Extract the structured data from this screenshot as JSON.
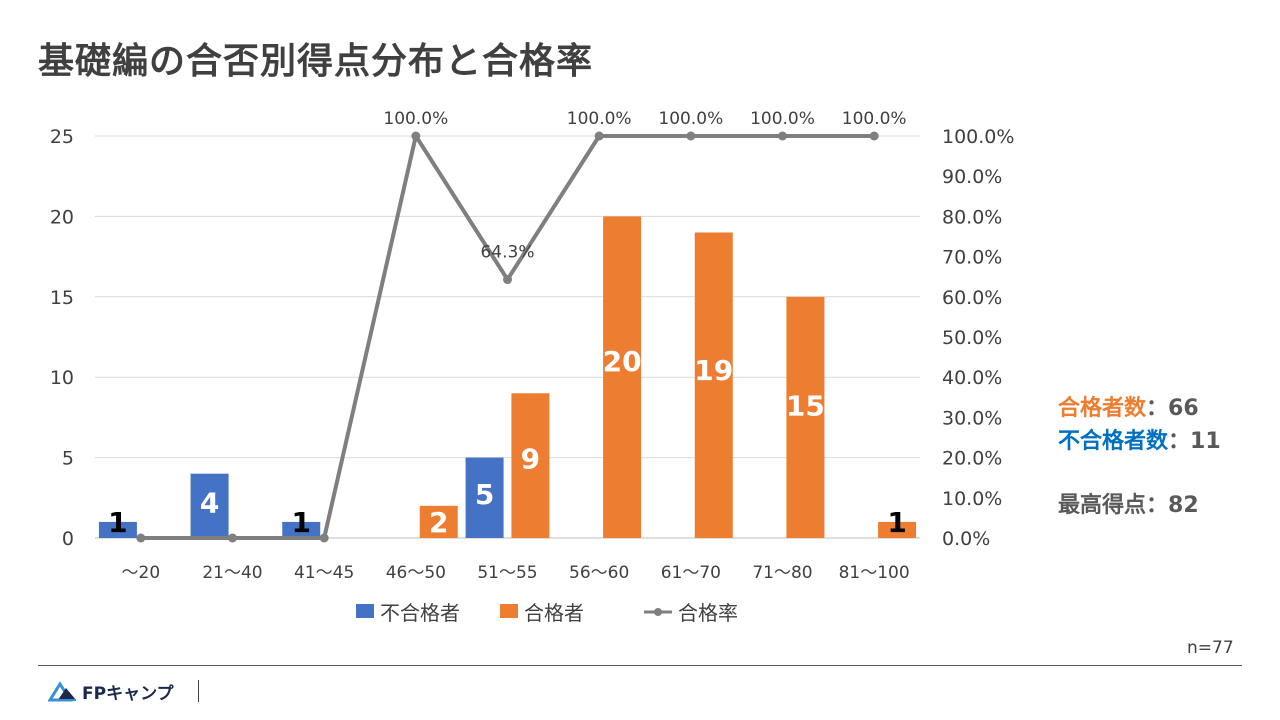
{
  "title": "基礎編の合否別得点分布と合格率",
  "chart_data": {
    "type": "bar",
    "categories": [
      "〜20",
      "21〜40",
      "41〜45",
      "46〜50",
      "51〜55",
      "56〜60",
      "61〜70",
      "71〜80",
      "81〜100"
    ],
    "series": [
      {
        "name": "不合格者",
        "type": "bar",
        "axis": "left",
        "color": "#4472C4",
        "values": [
          1,
          4,
          1,
          0,
          5,
          0,
          0,
          0,
          0
        ],
        "labels": [
          "1",
          "4",
          "1",
          "",
          "5",
          "",
          "",
          "",
          ""
        ]
      },
      {
        "name": "合格者",
        "type": "bar",
        "axis": "left",
        "color": "#ED7D31",
        "values": [
          0,
          0,
          0,
          2,
          9,
          20,
          19,
          15,
          1
        ],
        "labels": [
          "",
          "",
          "",
          "2",
          "9",
          "20",
          "19",
          "15",
          "1"
        ]
      },
      {
        "name": "合格率",
        "type": "line",
        "axis": "right",
        "color": "#7F7F7F",
        "values": [
          0,
          0,
          0,
          100,
          64.3,
          100,
          100,
          100,
          100
        ],
        "labels": [
          "",
          "",
          "",
          "100.0%",
          "64.3%",
          "100.0%",
          "100.0%",
          "100.0%",
          "100.0%"
        ]
      }
    ],
    "y_left": {
      "min": 0,
      "max": 25,
      "ticks": [
        0,
        5,
        10,
        15,
        20,
        25
      ],
      "tick_labels": [
        "0",
        "5",
        "10",
        "15",
        "20",
        "25"
      ]
    },
    "y_right": {
      "min": 0,
      "max": 100,
      "ticks": [
        0,
        10,
        20,
        30,
        40,
        50,
        60,
        70,
        80,
        90,
        100
      ],
      "tick_labels": [
        "0.0%",
        "10.0%",
        "20.0%",
        "30.0%",
        "40.0%",
        "50.0%",
        "60.0%",
        "70.0%",
        "80.0%",
        "90.0%",
        "100.0%"
      ]
    },
    "grid": true,
    "legend": "bottom"
  },
  "stats": {
    "pass_label": "合格者数",
    "pass_value": "：66",
    "pass_color": "#ED7D31",
    "fail_label": "不合格者数",
    "fail_value": "：11",
    "fail_color": "#0070C0",
    "max_label": "最高得点",
    "max_value": "：82",
    "max_color": "#595959"
  },
  "n_label": "n=77",
  "logo": {
    "text": "FPキャンプ"
  }
}
